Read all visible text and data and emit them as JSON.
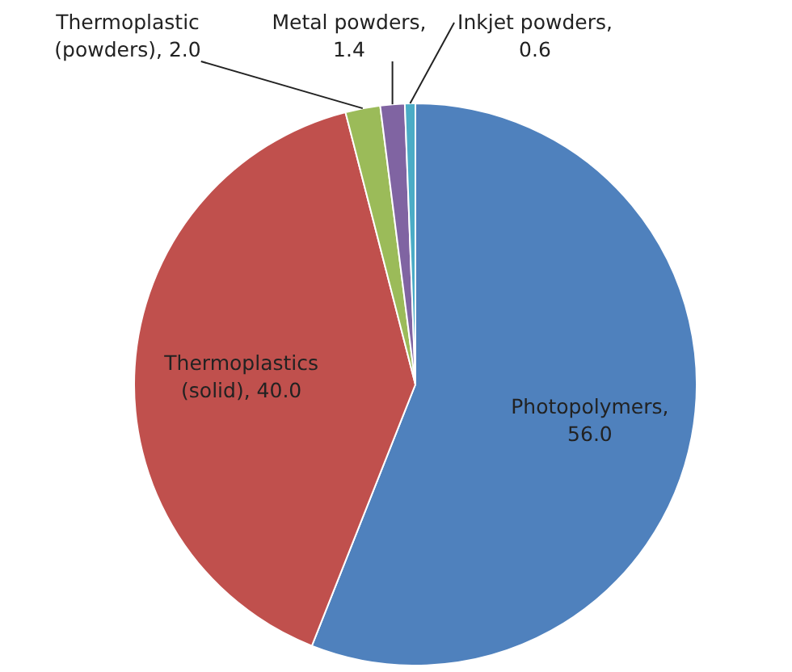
{
  "chart_data": {
    "type": "pie",
    "categories": [
      "Photopolymers",
      "Thermoplastics (solid)",
      "Thermoplastic (powders)",
      "Metal powders",
      "Inkjet powders"
    ],
    "values": [
      56.0,
      40.0,
      2.0,
      1.4,
      0.6
    ],
    "colors": [
      "#4f81bd",
      "#c0504d",
      "#9bbb59",
      "#8064a2",
      "#4bacc6"
    ],
    "value_labels": [
      ", 56.0",
      ", 40.0",
      ", 2.0",
      ", 1.4",
      ", 0.6"
    ]
  }
}
